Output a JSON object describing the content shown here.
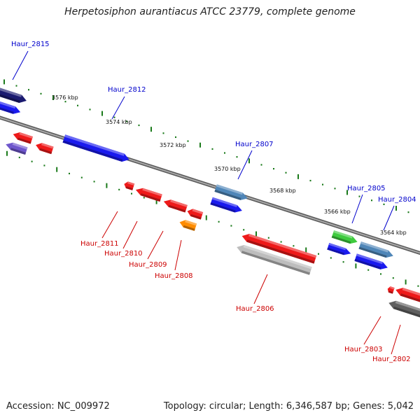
{
  "title": "Herpetosiphon aurantiacus ATCC 23779, complete genome",
  "footer": {
    "accession": "Accession: NC_009972",
    "summary": "Topology: circular; Length: 6,346,587 bp; Genes: 5,042"
  },
  "colors": {
    "forward_label": "#0000cc",
    "reverse_label": "#cc0000",
    "backbone": "#808080",
    "ticks": "#1a7a1a"
  },
  "ruler": {
    "kbp_labels": [
      "3576 kbp",
      "3574 kbp",
      "3572 kbp",
      "3570 kbp",
      "3568 kbp",
      "3566 kbp",
      "3564 kbp"
    ]
  },
  "genes": [
    {
      "id": "forward-dark",
      "strand": "forward",
      "color": "#1a1a70"
    },
    {
      "id": "forward-blue-small",
      "strand": "forward",
      "color": "#1a1aee"
    },
    {
      "id": "forward-long",
      "strand": "forward",
      "color": "#1a1aee"
    },
    {
      "id": "forward-steel-mid",
      "strand": "forward",
      "color": "#4f86b8"
    },
    {
      "id": "forward-blue-mid",
      "strand": "forward",
      "color": "#1a1aee"
    },
    {
      "id": "forward-green",
      "strand": "forward",
      "color": "#3ecb3e"
    },
    {
      "id": "forward-steel-right",
      "strand": "forward",
      "color": "#4f86b8"
    },
    {
      "id": "forward-blue-right1",
      "strand": "forward",
      "color": "#1a1aee"
    },
    {
      "id": "forward-blue-right2",
      "strand": "forward",
      "color": "#1a1aee"
    },
    {
      "id": "reverse-red-left",
      "strand": "reverse",
      "color": "#ee1a1a"
    },
    {
      "id": "reverse-purple-left",
      "strand": "reverse",
      "color": "#6e56cc"
    },
    {
      "id": "reverse-red-left2",
      "strand": "reverse",
      "color": "#ee1a1a"
    },
    {
      "id": "reverse-red-tiny",
      "strand": "reverse",
      "color": "#ee1a1a"
    },
    {
      "id": "reverse-red-a",
      "strand": "reverse",
      "color": "#ee1a1a"
    },
    {
      "id": "reverse-red-b",
      "strand": "reverse",
      "color": "#ee1a1a"
    },
    {
      "id": "reverse-red-c",
      "strand": "reverse",
      "color": "#ee1a1a"
    },
    {
      "id": "reverse-orange",
      "strand": "reverse",
      "color": "#ff8c00"
    },
    {
      "id": "reverse-red-long",
      "strand": "reverse",
      "color": "#ee1a1a"
    },
    {
      "id": "reverse-grey-long",
      "strand": "reverse",
      "color": "#bdbdbd"
    },
    {
      "id": "reverse-red-edge-tiny",
      "strand": "reverse",
      "color": "#ee1a1a"
    },
    {
      "id": "reverse-red-edge",
      "strand": "reverse",
      "color": "#ee1a1a"
    },
    {
      "id": "reverse-darkgrey-edge",
      "strand": "reverse",
      "color": "#606060"
    }
  ],
  "labels": [
    {
      "text": "Haur_2815",
      "strand": "forward"
    },
    {
      "text": "Haur_2812",
      "strand": "forward"
    },
    {
      "text": "Haur_2807",
      "strand": "forward"
    },
    {
      "text": "Haur_2805",
      "strand": "forward"
    },
    {
      "text": "Haur_2804",
      "strand": "forward"
    },
    {
      "text": "Haur_2811",
      "strand": "reverse"
    },
    {
      "text": "Haur_2810",
      "strand": "reverse"
    },
    {
      "text": "Haur_2809",
      "strand": "reverse"
    },
    {
      "text": "Haur_2808",
      "strand": "reverse"
    },
    {
      "text": "Haur_2806",
      "strand": "reverse"
    },
    {
      "text": "Haur_2803",
      "strand": "reverse"
    },
    {
      "text": "Haur_2802",
      "strand": "reverse"
    }
  ]
}
